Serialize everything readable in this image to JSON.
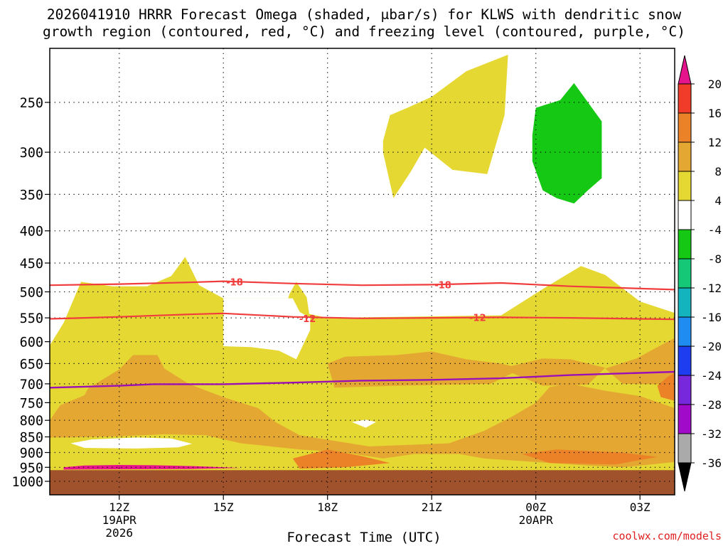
{
  "title": {
    "line1": "2026041910 HRRR Forecast Omega (shaded, μbar/s) for KLWS with dendritic snow",
    "line2": "growth region (contoured, red, °C) and freezing level (contoured, purple, °C)"
  },
  "credit": "coolwx.com/models",
  "chart_data": {
    "type": "area",
    "title": "2026041910 HRRR Forecast Omega (shaded, μbar/s) for KLWS with dendritic snow growth region (contoured, red, °C) and freezing level (contoured, purple, °C)",
    "xlabel": "Forecast Time (UTC)",
    "ylabel": "",
    "x_range_hours": [
      10,
      28
    ],
    "y_range_hPa": [
      1025,
      200
    ],
    "y_scale": "log-pressure (inverted)",
    "grid": true,
    "x_ticks": [
      {
        "hour": 12,
        "lines": [
          "12Z",
          "19APR",
          "2026"
        ]
      },
      {
        "hour": 15,
        "lines": [
          "15Z"
        ]
      },
      {
        "hour": 18,
        "lines": [
          "18Z"
        ]
      },
      {
        "hour": 21,
        "lines": [
          "21Z"
        ]
      },
      {
        "hour": 24,
        "lines": [
          "00Z",
          "20APR"
        ]
      },
      {
        "hour": 27,
        "lines": [
          "03Z"
        ]
      }
    ],
    "y_ticks": [
      250,
      300,
      350,
      400,
      450,
      500,
      550,
      600,
      650,
      700,
      750,
      800,
      850,
      900,
      950,
      1000
    ],
    "ground_pressure_hPa": 960,
    "colorbar": {
      "labels": [
        "20",
        "16",
        "12",
        "8",
        "4",
        "-4",
        "-8",
        "-12",
        "-16",
        "-20",
        "-24",
        "-28",
        "-32",
        "-36"
      ],
      "bands": [
        {
          "from": 16,
          "to": 20,
          "color": "#f03c28"
        },
        {
          "from": 12,
          "to": 16,
          "color": "#ec8228"
        },
        {
          "from": 8,
          "to": 12,
          "color": "#e4a832"
        },
        {
          "from": 4,
          "to": 8,
          "color": "#e6d832"
        },
        {
          "from": -4,
          "to": 4,
          "color": "#ffffff"
        },
        {
          "from": -8,
          "to": -4,
          "color": "#14c814"
        },
        {
          "from": -12,
          "to": -8,
          "color": "#14c878"
        },
        {
          "from": -16,
          "to": -12,
          "color": "#14b4be"
        },
        {
          "from": -20,
          "to": -16,
          "color": "#1e8cf0"
        },
        {
          "from": -24,
          "to": -20,
          "color": "#1e3cf0"
        },
        {
          "from": -28,
          "to": -24,
          "color": "#7828dc"
        },
        {
          "from": -32,
          "to": -28,
          "color": "#a00ac8"
        },
        {
          "from": -36,
          "to": -32,
          "color": "#aaaaaa"
        }
      ],
      "top_arrow_color": "#e6148c",
      "bottom_arrow_color": "#000000"
    },
    "colors": {
      "ground": "#a0522d",
      "omega_4_8": "#e6d832",
      "omega_8_12": "#e4a832",
      "omega_12_16": "#ec8228",
      "omega_gt_20": "#e6148c",
      "omega_lt_minus4": "#14c814",
      "dgz_contour": "#f03c3c",
      "freezing_contour": "#9b10b4"
    },
    "contours": [
      {
        "name": "-18",
        "color": "#f03c3c",
        "points": [
          [
            10,
            488
          ],
          [
            12,
            486
          ],
          [
            14,
            483
          ],
          [
            15,
            481
          ],
          [
            17,
            485
          ],
          [
            19,
            488
          ],
          [
            21,
            487
          ],
          [
            23,
            484
          ],
          [
            25,
            490
          ],
          [
            28,
            496
          ]
        ],
        "labels": [
          {
            "text": "-18",
            "at": [
              15.1,
              482
            ]
          },
          {
            "text": "-18",
            "at": [
              21.1,
              487
            ]
          }
        ]
      },
      {
        "name": "-12",
        "color": "#f03c3c",
        "points": [
          [
            10,
            552
          ],
          [
            12,
            548
          ],
          [
            14,
            543
          ],
          [
            15,
            541
          ],
          [
            17,
            548
          ],
          [
            19,
            551
          ],
          [
            21,
            550
          ],
          [
            23,
            549
          ],
          [
            25,
            550
          ],
          [
            28,
            553
          ]
        ],
        "labels": [
          {
            "text": "-12",
            "at": [
              17.2,
              551
            ]
          },
          {
            "text": "-12",
            "at": [
              22.1,
              549
            ]
          }
        ]
      },
      {
        "name": "freezing level",
        "color": "#9b10b4",
        "points": [
          [
            10,
            710
          ],
          [
            12,
            705
          ],
          [
            13,
            701
          ],
          [
            15,
            701
          ],
          [
            17,
            697
          ],
          [
            19,
            692
          ],
          [
            21,
            690
          ],
          [
            23,
            686
          ],
          [
            25,
            678
          ],
          [
            28,
            670
          ]
        ],
        "labels": []
      }
    ],
    "regions": [
      {
        "band": "4 to 8",
        "polygon": [
          [
            10,
            700
          ],
          [
            10,
            608
          ],
          [
            10.4,
            560
          ],
          [
            10.9,
            482
          ],
          [
            11.8,
            490
          ],
          [
            12.8,
            490
          ],
          [
            13.5,
            472
          ],
          [
            13.9,
            440
          ],
          [
            14.3,
            488
          ],
          [
            15,
            512
          ],
          [
            17,
            512
          ],
          [
            17.2,
            538
          ],
          [
            18,
            550
          ],
          [
            20,
            548
          ],
          [
            23,
            545
          ],
          [
            24.2,
            495
          ],
          [
            25.3,
            455
          ],
          [
            26,
            470
          ],
          [
            27,
            518
          ],
          [
            28,
            540
          ],
          [
            28,
            962
          ],
          [
            10,
            962
          ]
        ]
      },
      {
        "band": "4 to 8",
        "polygon": [
          [
            16.7,
            550
          ],
          [
            16.9,
            505
          ],
          [
            17.1,
            482
          ],
          [
            17.4,
            510
          ],
          [
            17.5,
            555
          ]
        ]
      },
      {
        "band": "4 to 8",
        "polygon": [
          [
            19.6,
            288
          ],
          [
            19.8,
            262
          ],
          [
            20.3,
            255
          ],
          [
            21,
            245
          ],
          [
            22,
            223
          ],
          [
            23.2,
            210
          ],
          [
            23.1,
            262
          ],
          [
            22.6,
            325
          ],
          [
            21.6,
            320
          ],
          [
            20.8,
            295
          ],
          [
            20.4,
            322
          ],
          [
            19.9,
            355
          ],
          [
            19.6,
            300
          ]
        ]
      },
      {
        "band": "8 to 12",
        "polygon": [
          [
            10,
            800
          ],
          [
            10.3,
            757
          ],
          [
            11,
            730
          ],
          [
            11.1,
            712
          ],
          [
            12,
            664
          ],
          [
            12.4,
            630
          ],
          [
            13.1,
            630
          ],
          [
            13.3,
            662
          ],
          [
            14,
            700
          ],
          [
            15,
            735
          ],
          [
            16,
            765
          ],
          [
            16.5,
            805
          ],
          [
            17.2,
            845
          ],
          [
            19.2,
            880
          ],
          [
            21.5,
            870
          ],
          [
            22.5,
            832
          ],
          [
            23.3,
            790
          ],
          [
            24,
            750
          ],
          [
            24.4,
            708
          ],
          [
            25,
            700
          ],
          [
            26,
            718
          ],
          [
            27,
            732
          ],
          [
            28,
            765
          ],
          [
            28,
            932
          ],
          [
            26.5,
            950
          ],
          [
            25.5,
            944
          ],
          [
            24,
            932
          ],
          [
            22.5,
            920
          ],
          [
            21.8,
            905
          ],
          [
            20.5,
            905
          ],
          [
            19.6,
            920
          ],
          [
            18.5,
            900
          ],
          [
            17.2,
            890
          ],
          [
            15.5,
            870
          ],
          [
            14.5,
            845
          ],
          [
            13.3,
            842
          ],
          [
            12,
            848
          ],
          [
            10.5,
            852
          ],
          [
            10,
            852
          ]
        ]
      },
      {
        "band": "8 to 12",
        "polygon": [
          [
            18,
            650
          ],
          [
            18.5,
            634
          ],
          [
            20,
            630
          ],
          [
            21,
            622
          ],
          [
            22,
            640
          ],
          [
            23,
            650
          ],
          [
            23.6,
            662
          ],
          [
            22.7,
            700
          ],
          [
            20,
            705
          ],
          [
            18.2,
            710
          ]
        ]
      },
      {
        "band": "8 to 12",
        "polygon": [
          [
            23,
            662
          ],
          [
            24.2,
            638
          ],
          [
            25,
            640
          ],
          [
            26,
            660
          ],
          [
            25.5,
            702
          ],
          [
            24.2,
            705
          ]
        ]
      },
      {
        "band": "8 to 12",
        "polygon": [
          [
            26,
            662
          ],
          [
            26.9,
            638
          ],
          [
            27.5,
            612
          ],
          [
            28,
            592
          ],
          [
            28,
            702
          ],
          [
            26.5,
            700
          ]
        ]
      },
      {
        "band": "12 to 16",
        "polygon": [
          [
            17,
            920
          ],
          [
            18,
            890
          ],
          [
            19,
            912
          ],
          [
            19.8,
            935
          ],
          [
            18.5,
            950
          ],
          [
            17.2,
            955
          ]
        ]
      },
      {
        "band": "12 to 16",
        "polygon": [
          [
            23.6,
            905
          ],
          [
            24.6,
            890
          ],
          [
            26.5,
            900
          ],
          [
            27.5,
            915
          ],
          [
            26.3,
            940
          ],
          [
            24.4,
            935
          ]
        ]
      },
      {
        "band": "12 to 16",
        "polygon": [
          [
            27.5,
            705
          ],
          [
            27.8,
            682
          ],
          [
            28,
            672
          ],
          [
            28,
            745
          ],
          [
            27.6,
            735
          ]
        ]
      },
      {
        "band": "-4 to 4",
        "polygon": [
          [
            10.6,
            870
          ],
          [
            11.2,
            858
          ],
          [
            12.5,
            852
          ],
          [
            13.5,
            855
          ],
          [
            14.1,
            872
          ],
          [
            13.7,
            883
          ],
          [
            12.5,
            887
          ],
          [
            11,
            885
          ]
        ]
      },
      {
        "band": "-4 to 4",
        "polygon": [
          [
            15,
            610
          ],
          [
            15.8,
            612
          ],
          [
            16.6,
            620
          ],
          [
            17.1,
            640
          ],
          [
            17.5,
            575
          ],
          [
            17.5,
            550
          ],
          [
            17.2,
            538
          ],
          [
            17,
            512
          ],
          [
            15,
            512
          ]
        ]
      },
      {
        "band": "-4 to 4",
        "polygon": [
          [
            18.7,
            805
          ],
          [
            19.1,
            798
          ],
          [
            19.4,
            805
          ],
          [
            19.1,
            822
          ]
        ]
      },
      {
        "band": "> 20",
        "polygon": [
          [
            10.4,
            950
          ],
          [
            11,
            944
          ],
          [
            12,
            942
          ],
          [
            13,
            943
          ],
          [
            14.2,
            946
          ],
          [
            15.5,
            952
          ],
          [
            14,
            956
          ],
          [
            12,
            957
          ],
          [
            10.4,
            958
          ]
        ]
      },
      {
        "band": "-8 to -4",
        "polygon": [
          [
            24,
            255
          ],
          [
            24.7,
            248
          ],
          [
            25.1,
            233
          ],
          [
            25.9,
            268
          ],
          [
            25.9,
            330
          ],
          [
            25.5,
            345
          ],
          [
            25.1,
            362
          ],
          [
            24.6,
            355
          ],
          [
            24.2,
            345
          ],
          [
            23.9,
            310
          ],
          [
            23.9,
            282
          ]
        ]
      }
    ]
  }
}
